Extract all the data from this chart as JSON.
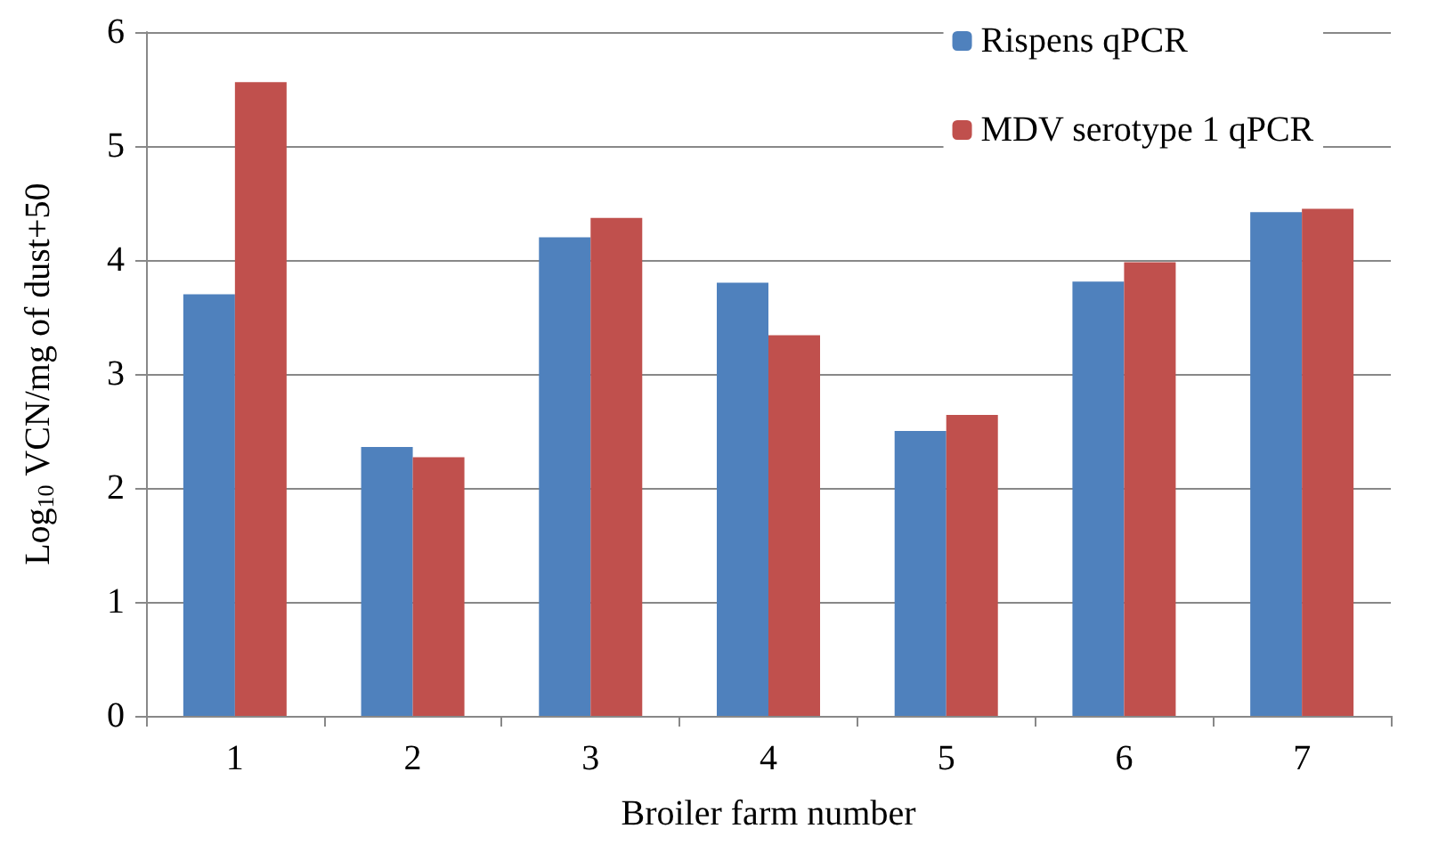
{
  "chart_data": {
    "type": "bar",
    "xlabel": "Broiler farm number",
    "ylabel": "Log$_{10}$ VCN/mg of dust+50",
    "categories": [
      "1",
      "2",
      "3",
      "4",
      "5",
      "6",
      "7"
    ],
    "series": [
      {
        "name": "Rispens qPCR",
        "color": "#4f81bd",
        "values": [
          3.7,
          2.36,
          4.2,
          3.8,
          2.5,
          3.81,
          4.42
        ]
      },
      {
        "name": "MDV serotype 1 qPCR",
        "color": "#c0504d",
        "values": [
          5.56,
          2.27,
          4.37,
          3.34,
          2.64,
          3.98,
          4.45
        ]
      }
    ],
    "ylim": [
      0,
      6
    ],
    "yticks": [
      0,
      1,
      2,
      3,
      4,
      5,
      6
    ],
    "grid": "y",
    "legend": "top right"
  }
}
